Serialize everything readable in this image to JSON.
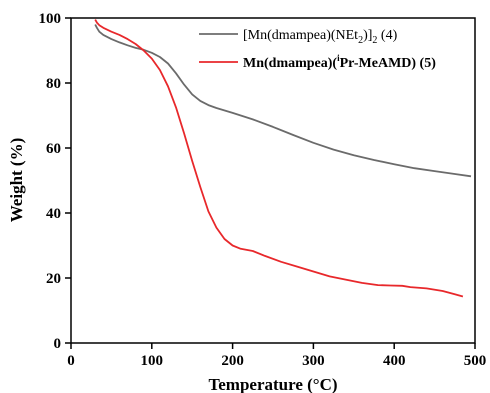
{
  "chart_data": {
    "type": "line",
    "title": "",
    "xlabel": "Temperature (°C)",
    "ylabel": "Weight (%)",
    "xlim": [
      0,
      500
    ],
    "ylim": [
      0,
      100
    ],
    "xticks": [
      0,
      100,
      200,
      300,
      400,
      500
    ],
    "yticks": [
      0,
      20,
      40,
      60,
      80,
      100
    ],
    "grid": false,
    "legend_position": "top-right",
    "series": [
      {
        "name_parts": [
          "[Mn(dmampea)(NEt",
          "2",
          ")]",
          "2",
          " (4)"
        ],
        "color": "#6b6b6b",
        "points": [
          [
            30,
            98
          ],
          [
            32,
            97
          ],
          [
            35,
            95.8
          ],
          [
            40,
            94.8
          ],
          [
            50,
            93.5
          ],
          [
            60,
            92.5
          ],
          [
            70,
            91.6
          ],
          [
            80,
            90.8
          ],
          [
            90,
            90.2
          ],
          [
            100,
            89.3
          ],
          [
            110,
            88
          ],
          [
            120,
            86
          ],
          [
            130,
            83
          ],
          [
            140,
            79.5
          ],
          [
            150,
            76.5
          ],
          [
            160,
            74.5
          ],
          [
            170,
            73.2
          ],
          [
            180,
            72.3
          ],
          [
            200,
            70.8
          ],
          [
            225,
            68.8
          ],
          [
            250,
            66.5
          ],
          [
            275,
            64
          ],
          [
            300,
            61.6
          ],
          [
            325,
            59.5
          ],
          [
            350,
            57.8
          ],
          [
            375,
            56.3
          ],
          [
            400,
            55
          ],
          [
            425,
            53.8
          ],
          [
            450,
            52.9
          ],
          [
            475,
            52
          ],
          [
            495,
            51.3
          ]
        ]
      },
      {
        "name_parts": [
          "Mn(dmampea)(",
          "i",
          "Pr-MeAMD) (5)"
        ],
        "color": "#e8282b",
        "points": [
          [
            30,
            99.5
          ],
          [
            32,
            98.6
          ],
          [
            35,
            97.8
          ],
          [
            40,
            97
          ],
          [
            50,
            95.8
          ],
          [
            60,
            94.8
          ],
          [
            70,
            93.5
          ],
          [
            80,
            92
          ],
          [
            90,
            90
          ],
          [
            100,
            87.5
          ],
          [
            110,
            84
          ],
          [
            120,
            79
          ],
          [
            130,
            72.5
          ],
          [
            140,
            64.5
          ],
          [
            150,
            56
          ],
          [
            160,
            48
          ],
          [
            170,
            40.5
          ],
          [
            180,
            35.5
          ],
          [
            190,
            32
          ],
          [
            200,
            30
          ],
          [
            210,
            29
          ],
          [
            225,
            28.3
          ],
          [
            240,
            26.8
          ],
          [
            260,
            25
          ],
          [
            280,
            23.5
          ],
          [
            300,
            22
          ],
          [
            320,
            20.5
          ],
          [
            340,
            19.5
          ],
          [
            360,
            18.5
          ],
          [
            380,
            17.8
          ],
          [
            395,
            17.7
          ],
          [
            410,
            17.6
          ],
          [
            420,
            17.2
          ],
          [
            440,
            16.8
          ],
          [
            460,
            16
          ],
          [
            475,
            15
          ],
          [
            485,
            14.3
          ]
        ]
      }
    ]
  }
}
